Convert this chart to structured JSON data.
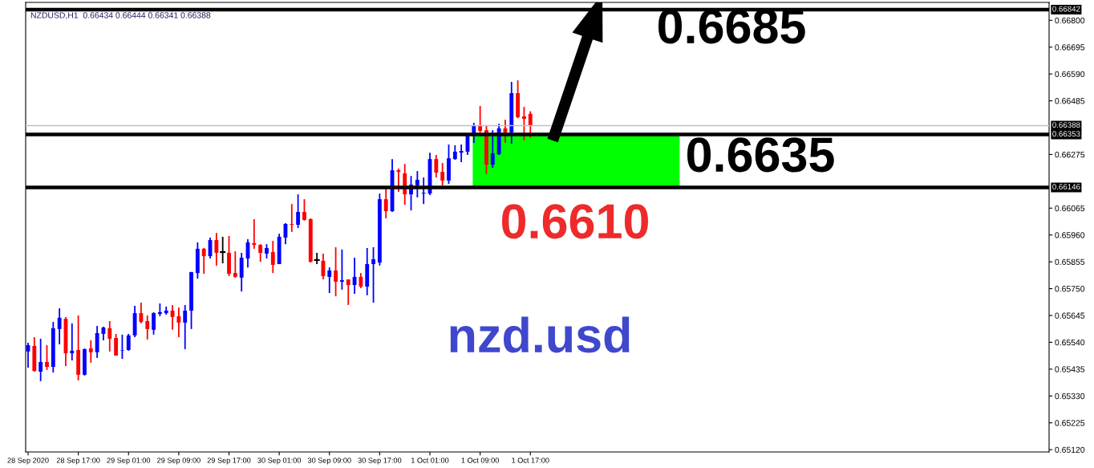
{
  "chart_data": {
    "type": "candlestick",
    "title": "NZDUSD,H1  0.66434 0.66444 0.66341 0.66388",
    "annotations": [
      "0.6685",
      "0.6635",
      "0.6610",
      "nzd.usd"
    ],
    "x": [
      "2020-09-28T09:00",
      "2020-09-28T10:00",
      "2020-09-28T11:00",
      "2020-09-28T12:00",
      "2020-09-28T13:00",
      "2020-09-28T14:00",
      "2020-09-28T15:00",
      "2020-09-28T16:00",
      "2020-09-28T17:00",
      "2020-09-28T18:00",
      "2020-09-28T19:00",
      "2020-09-28T20:00",
      "2020-09-28T21:00",
      "2020-09-28T22:00",
      "2020-09-28T23:00",
      "2020-09-29T00:00",
      "2020-09-29T01:00",
      "2020-09-29T02:00",
      "2020-09-29T03:00",
      "2020-09-29T04:00",
      "2020-09-29T05:00",
      "2020-09-29T06:00",
      "2020-09-29T07:00",
      "2020-09-29T08:00",
      "2020-09-29T09:00",
      "2020-09-29T10:00",
      "2020-09-29T11:00",
      "2020-09-29T12:00",
      "2020-09-29T13:00",
      "2020-09-29T14:00",
      "2020-09-29T15:00",
      "2020-09-29T16:00",
      "2020-09-29T17:00",
      "2020-09-29T18:00",
      "2020-09-29T19:00",
      "2020-09-29T20:00",
      "2020-09-29T21:00",
      "2020-09-29T22:00",
      "2020-09-29T23:00",
      "2020-09-30T00:00",
      "2020-09-30T01:00",
      "2020-09-30T02:00",
      "2020-09-30T03:00",
      "2020-09-30T04:00",
      "2020-09-30T05:00",
      "2020-09-30T06:00",
      "2020-09-30T07:00",
      "2020-09-30T08:00",
      "2020-09-30T09:00",
      "2020-09-30T10:00",
      "2020-09-30T11:00",
      "2020-09-30T12:00",
      "2020-09-30T13:00",
      "2020-09-30T14:00",
      "2020-09-30T15:00",
      "2020-09-30T16:00",
      "2020-09-30T17:00",
      "2020-09-30T18:00",
      "2020-09-30T19:00",
      "2020-09-30T20:00",
      "2020-09-30T21:00",
      "2020-09-30T22:00",
      "2020-09-30T23:00",
      "2020-10-01T00:00",
      "2020-10-01T01:00",
      "2020-10-01T02:00",
      "2020-10-01T03:00",
      "2020-10-01T04:00",
      "2020-10-01T05:00",
      "2020-10-01T06:00",
      "2020-10-01T07:00",
      "2020-10-01T08:00",
      "2020-10-01T09:00",
      "2020-10-01T10:00",
      "2020-10-01T11:00",
      "2020-10-01T12:00",
      "2020-10-01T13:00",
      "2020-10-01T14:00",
      "2020-10-01T15:00",
      "2020-10-01T16:00",
      "2020-10-01T17:00"
    ],
    "ohlc": [
      [
        0.65504,
        0.65538,
        0.65441,
        0.65529
      ],
      [
        0.65526,
        0.6556,
        0.65425,
        0.65428
      ],
      [
        0.65425,
        0.65554,
        0.65388,
        0.65463
      ],
      [
        0.65463,
        0.65529,
        0.65432,
        0.65444
      ],
      [
        0.65444,
        0.6562,
        0.65422,
        0.65595
      ],
      [
        0.65592,
        0.65673,
        0.65532,
        0.65636
      ],
      [
        0.65632,
        0.65639,
        0.65447,
        0.65497
      ],
      [
        0.65497,
        0.65614,
        0.65469,
        0.65507
      ],
      [
        0.6551,
        0.65645,
        0.65391,
        0.65413
      ],
      [
        0.65413,
        0.65516,
        0.6541,
        0.65513
      ],
      [
        0.65516,
        0.65548,
        0.6546,
        0.65501
      ],
      [
        0.65501,
        0.65604,
        0.65479,
        0.65576
      ],
      [
        0.65573,
        0.65601,
        0.65548,
        0.65598
      ],
      [
        0.65595,
        0.65623,
        0.65504,
        0.65554
      ],
      [
        0.65557,
        0.65573,
        0.65488,
        0.65488
      ],
      [
        0.65508,
        0.6557,
        0.65475,
        0.6551
      ],
      [
        0.6551,
        0.65573,
        0.65507,
        0.65567
      ],
      [
        0.65567,
        0.65683,
        0.6556,
        0.65654
      ],
      [
        0.65654,
        0.65695,
        0.65614,
        0.6562
      ],
      [
        0.65623,
        0.65645,
        0.65551,
        0.65592
      ],
      [
        0.65589,
        0.65658,
        0.6557,
        0.65654
      ],
      [
        0.65651,
        0.65692,
        0.65642,
        0.65658
      ],
      [
        0.65654,
        0.6568,
        0.65648,
        0.65664
      ],
      [
        0.65664,
        0.65686,
        0.65589,
        0.65639
      ],
      [
        0.65642,
        0.65676,
        0.6556,
        0.65617
      ],
      [
        0.65617,
        0.65686,
        0.65513,
        0.65664
      ],
      [
        0.65664,
        0.65815,
        0.65592,
        0.65815
      ],
      [
        0.65811,
        0.65931,
        0.65789,
        0.65906
      ],
      [
        0.65906,
        0.65909,
        0.65808,
        0.65877
      ],
      [
        0.65877,
        0.6595,
        0.65868,
        0.6594
      ],
      [
        0.6594,
        0.65968,
        0.6584,
        0.6589
      ],
      [
        0.65893,
        0.65953,
        0.65849,
        0.65893
      ],
      [
        0.6589,
        0.65956,
        0.65799,
        0.65808
      ],
      [
        0.65811,
        0.65896,
        0.65793,
        0.65796
      ],
      [
        0.65793,
        0.6589,
        0.65739,
        0.65871
      ],
      [
        0.65868,
        0.65943,
        0.65833,
        0.65931
      ],
      [
        0.65928,
        0.66022,
        0.65906,
        0.65921
      ],
      [
        0.65921,
        0.65924,
        0.65855,
        0.6589
      ],
      [
        0.65887,
        0.65924,
        0.65868,
        0.65909
      ],
      [
        0.65893,
        0.65937,
        0.65811,
        0.65843
      ],
      [
        0.65846,
        0.65965,
        0.65846,
        0.65953
      ],
      [
        0.6595,
        0.66006,
        0.65924,
        0.66003
      ],
      [
        0.66003,
        0.66081,
        0.65972,
        0.66
      ],
      [
        0.66,
        0.66119,
        0.65987,
        0.6605
      ],
      [
        0.6605,
        0.661,
        0.66016,
        0.66019
      ],
      [
        0.66022,
        0.66025,
        0.65852,
        0.65855
      ],
      [
        0.65862,
        0.6589,
        0.65846,
        0.65862
      ],
      [
        0.65859,
        0.65887,
        0.65786,
        0.65799
      ],
      [
        0.65796,
        0.65833,
        0.65733,
        0.65821
      ],
      [
        0.65821,
        0.65912,
        0.6572,
        0.65777
      ],
      [
        0.65777,
        0.65903,
        0.65746,
        0.65783
      ],
      [
        0.65786,
        0.65786,
        0.65686,
        0.65764
      ],
      [
        0.65764,
        0.65871,
        0.6573,
        0.65796
      ],
      [
        0.65796,
        0.65811,
        0.65752,
        0.65758
      ],
      [
        0.65758,
        0.65909,
        0.65724,
        0.65846
      ],
      [
        0.65846,
        0.65912,
        0.65695,
        0.65865
      ],
      [
        0.65852,
        0.66122,
        0.6584,
        0.661
      ],
      [
        0.661,
        0.66144,
        0.66025,
        0.66053
      ],
      [
        0.66053,
        0.66257,
        0.6605,
        0.66213
      ],
      [
        0.66213,
        0.6622,
        0.66129,
        0.66207
      ],
      [
        0.66201,
        0.66238,
        0.66078,
        0.66119
      ],
      [
        0.66119,
        0.66191,
        0.66056,
        0.66157
      ],
      [
        0.66154,
        0.6621,
        0.66107,
        0.66176
      ],
      [
        0.66122,
        0.66185,
        0.66081,
        0.66125
      ],
      [
        0.66122,
        0.66282,
        0.66116,
        0.66257
      ],
      [
        0.66257,
        0.66273,
        0.66185,
        0.66204
      ],
      [
        0.66207,
        0.66242,
        0.66154,
        0.66173
      ],
      [
        0.66173,
        0.66314,
        0.6616,
        0.6626
      ],
      [
        0.66257,
        0.66311,
        0.66254,
        0.66286
      ],
      [
        0.66282,
        0.66314,
        0.66245,
        0.66289
      ],
      [
        0.66286,
        0.66348,
        0.66273,
        0.66348
      ],
      [
        0.66348,
        0.66399,
        0.6632,
        0.66389
      ],
      [
        0.66389,
        0.66465,
        0.66361,
        0.66367
      ],
      [
        0.6637,
        0.66389,
        0.66198,
        0.66235
      ],
      [
        0.66235,
        0.6637,
        0.66223,
        0.66279
      ],
      [
        0.66276,
        0.66395,
        0.66273,
        0.66377
      ],
      [
        0.66377,
        0.66411,
        0.6632,
        0.66361
      ],
      [
        0.66361,
        0.66559,
        0.66317,
        0.66515
      ],
      [
        0.66515,
        0.66565,
        0.66417,
        0.66421
      ],
      [
        0.66424,
        0.66461,
        0.6633,
        0.66414
      ],
      [
        0.66434,
        0.66444,
        0.66341,
        0.66388
      ]
    ],
    "colors": [
      "#0000ff",
      "#ff0000",
      "#0000ff",
      "#ff0000",
      "#0000ff",
      "#0000ff",
      "#ff0000",
      "#0000ff",
      "#ff0000",
      "#0000ff",
      "#ff0000",
      "#0000ff",
      "#0000ff",
      "#ff0000",
      "#ff0000",
      "#0000ff",
      "#0000ff",
      "#0000ff",
      "#ff0000",
      "#ff0000",
      "#0000ff",
      "#0000ff",
      "#0000ff",
      "#ff0000",
      "#ff0000",
      "#0000ff",
      "#0000ff",
      "#0000ff",
      "#ff0000",
      "#0000ff",
      "#ff0000",
      "#000000",
      "#ff0000",
      "#ff0000",
      "#0000ff",
      "#0000ff",
      "#ff0000",
      "#ff0000",
      "#0000ff",
      "#ff0000",
      "#0000ff",
      "#0000ff",
      "#ff0000",
      "#0000ff",
      "#ff0000",
      "#ff0000",
      "#000000",
      "#ff0000",
      "#0000ff",
      "#ff0000",
      "#0000ff",
      "#ff0000",
      "#0000ff",
      "#ff0000",
      "#0000ff",
      "#0000ff",
      "#0000ff",
      "#ff0000",
      "#0000ff",
      "#ff0000",
      "#ff0000",
      "#0000ff",
      "#0000ff",
      "#0000ff",
      "#0000ff",
      "#ff0000",
      "#ff0000",
      "#0000ff",
      "#0000ff",
      "#0000ff",
      "#0000ff",
      "#0000ff",
      "#ff0000",
      "#ff0000",
      "#0000ff",
      "#0000ff",
      "#ff0000",
      "#0000ff",
      "#ff0000",
      "#ff0000",
      "#ff0000"
    ],
    "xlim": [
      "2020-09-28T08:37",
      "2020-10-05T03:37"
    ],
    "xticks": [
      {
        "value": "2020-09-28T09:00",
        "label": "28 Sep 2020"
      },
      {
        "value": "2020-09-28T17:00",
        "label": "28 Sep 17:00"
      },
      {
        "value": "2020-09-29T01:00",
        "label": "29 Sep 01:00"
      },
      {
        "value": "2020-09-29T09:00",
        "label": "29 Sep 09:00"
      },
      {
        "value": "2020-09-29T17:00",
        "label": "29 Sep 17:00"
      },
      {
        "value": "2020-09-30T01:00",
        "label": "30 Sep 01:00"
      },
      {
        "value": "2020-09-30T09:00",
        "label": "30 Sep 09:00"
      },
      {
        "value": "2020-09-30T17:00",
        "label": "30 Sep 17:00"
      },
      {
        "value": "2020-10-01T01:00",
        "label": "1 Oct 01:00"
      },
      {
        "value": "2020-10-01T09:00",
        "label": "1 Oct 09:00"
      },
      {
        "value": "2020-10-01T17:00",
        "label": "1 Oct 17:00"
      }
    ],
    "ylim": [
      0.65111,
      0.6687
    ],
    "yticks": [
      {
        "value": 0.668,
        "label": "0.66800"
      },
      {
        "value": 0.66695,
        "label": "0.66695"
      },
      {
        "value": 0.6659,
        "label": "0.66590"
      },
      {
        "value": 0.66485,
        "label": "0.66485"
      },
      {
        "value": 0.66275,
        "label": "0.66275"
      },
      {
        "value": 0.66065,
        "label": "0.66065"
      },
      {
        "value": 0.6596,
        "label": "0.65960"
      },
      {
        "value": 0.65855,
        "label": "0.65855"
      },
      {
        "value": 0.6575,
        "label": "0.65750"
      },
      {
        "value": 0.65645,
        "label": "0.65645"
      },
      {
        "value": 0.6554,
        "label": "0.65540"
      },
      {
        "value": 0.65435,
        "label": "0.65435"
      },
      {
        "value": 0.6533,
        "label": "0.65330"
      },
      {
        "value": 0.65225,
        "label": "0.65225"
      },
      {
        "value": 0.6512,
        "label": "0.65120"
      }
    ],
    "ref_lines": [
      {
        "axis": "y",
        "value": 0.66842,
        "label": "0.66842",
        "color": "#000000",
        "line_style": "solid"
      },
      {
        "axis": "y",
        "value": 0.66388,
        "label": "0.66388",
        "color": "#c0c0c0",
        "line_style": "solid"
      },
      {
        "axis": "y",
        "value": 0.66353,
        "label": "0.66353",
        "color": "#000000",
        "line_style": "solid"
      },
      {
        "axis": "y",
        "value": 0.66146,
        "label": "0.66146",
        "color": "#000000",
        "line_style": "solid"
      }
    ],
    "bands": [
      {
        "axis": "y",
        "from": 0.66146,
        "to": 0.66353,
        "color": "#00ff00"
      }
    ]
  }
}
